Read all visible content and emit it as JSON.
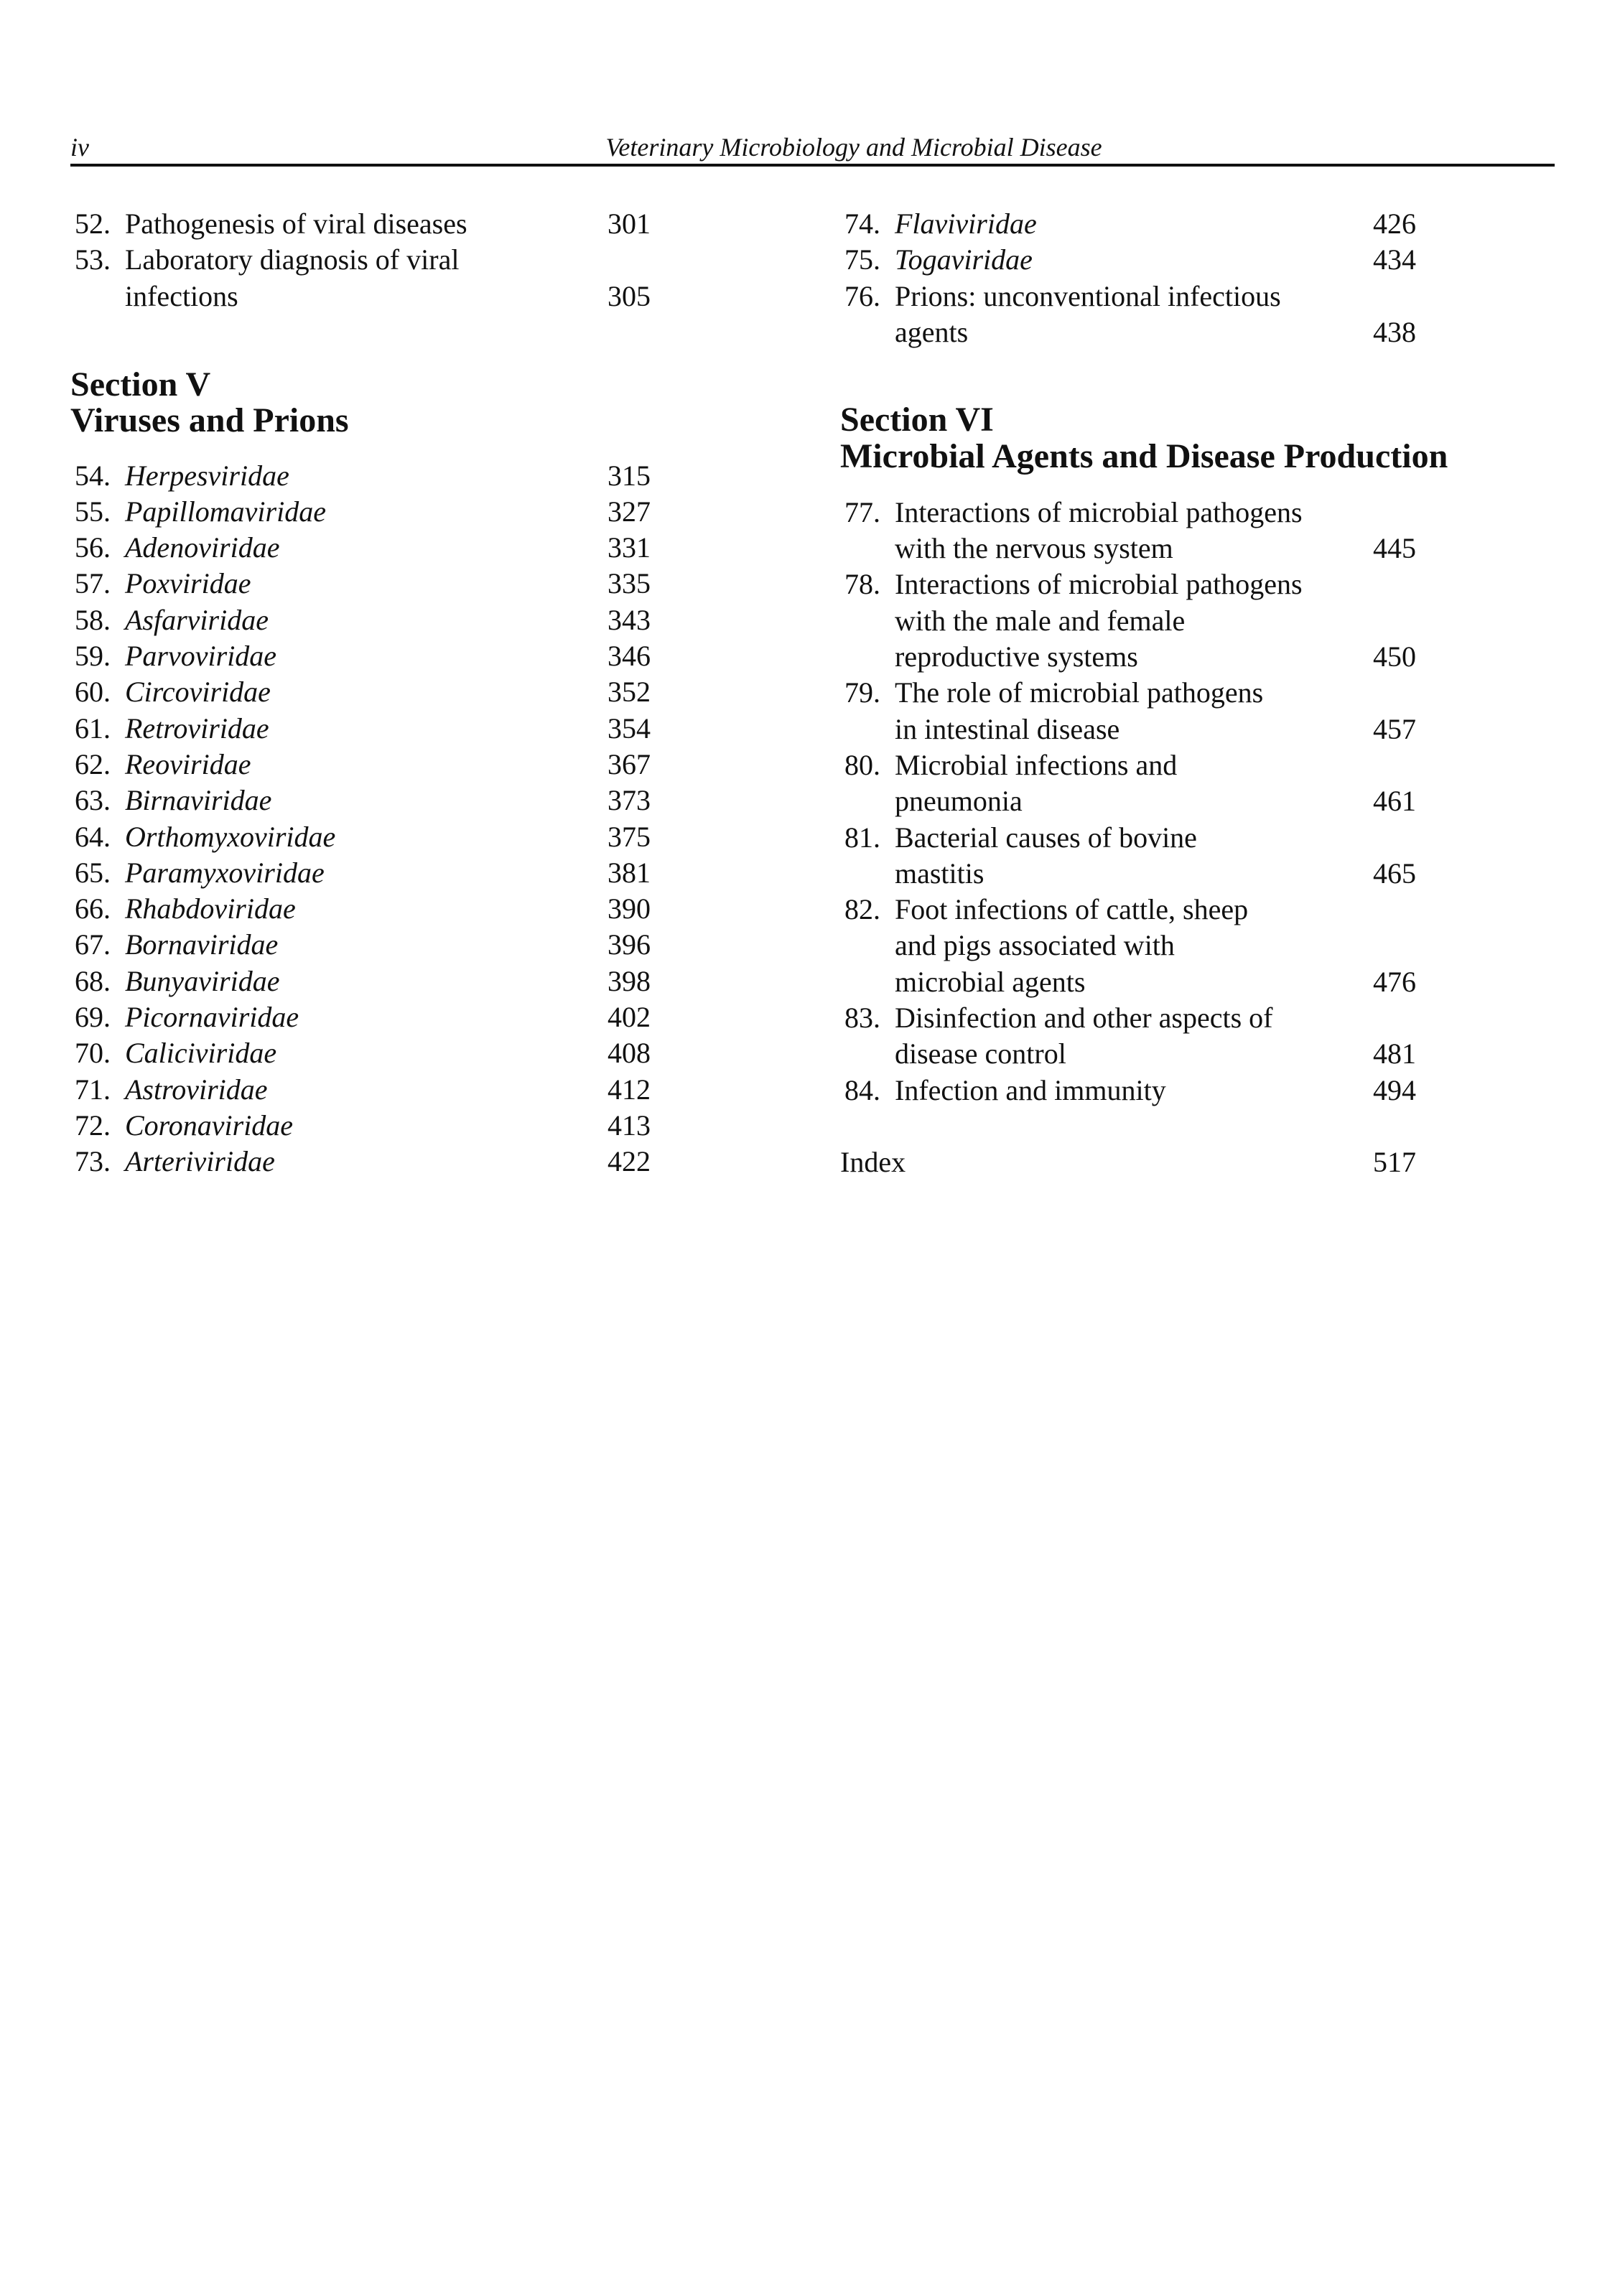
{
  "header": {
    "folio": "iv",
    "running_title": "Veterinary Microbiology and Microbial Disease"
  },
  "left_column": [
    {
      "type": "entry",
      "number": "52.",
      "lines": [
        "Pathogenesis of viral diseases"
      ],
      "page": "301",
      "italic": false
    },
    {
      "type": "entry",
      "number": "53.",
      "lines": [
        "Laboratory diagnosis of viral",
        "infections"
      ],
      "page": "305",
      "italic": false
    },
    {
      "type": "section",
      "lines": [
        "Section V",
        "Viruses and Prions"
      ]
    },
    {
      "type": "entry",
      "number": "54.",
      "lines": [
        "Herpesviridae"
      ],
      "page": "315",
      "italic": true
    },
    {
      "type": "entry",
      "number": "55.",
      "lines": [
        "Papillomaviridae"
      ],
      "page": "327",
      "italic": true
    },
    {
      "type": "entry",
      "number": "56.",
      "lines": [
        "Adenoviridae"
      ],
      "page": "331",
      "italic": true
    },
    {
      "type": "entry",
      "number": "57.",
      "lines": [
        "Poxviridae"
      ],
      "page": "335",
      "italic": true
    },
    {
      "type": "entry",
      "number": "58.",
      "lines": [
        "Asfarviridae"
      ],
      "page": "343",
      "italic": true
    },
    {
      "type": "entry",
      "number": "59.",
      "lines": [
        "Parvoviridae"
      ],
      "page": "346",
      "italic": true
    },
    {
      "type": "entry",
      "number": "60.",
      "lines": [
        "Circoviridae"
      ],
      "page": "352",
      "italic": true
    },
    {
      "type": "entry",
      "number": "61.",
      "lines": [
        "Retroviridae"
      ],
      "page": "354",
      "italic": true
    },
    {
      "type": "entry",
      "number": "62.",
      "lines": [
        "Reoviridae"
      ],
      "page": "367",
      "italic": true
    },
    {
      "type": "entry",
      "number": "63.",
      "lines": [
        "Birnaviridae"
      ],
      "page": "373",
      "italic": true
    },
    {
      "type": "entry",
      "number": "64.",
      "lines": [
        "Orthomyxoviridae"
      ],
      "page": "375",
      "italic": true
    },
    {
      "type": "entry",
      "number": "65.",
      "lines": [
        "Paramyxoviridae"
      ],
      "page": "381",
      "italic": true
    },
    {
      "type": "entry",
      "number": "66.",
      "lines": [
        "Rhabdoviridae"
      ],
      "page": "390",
      "italic": true
    },
    {
      "type": "entry",
      "number": "67.",
      "lines": [
        "Bornaviridae"
      ],
      "page": "396",
      "italic": true
    },
    {
      "type": "entry",
      "number": "68.",
      "lines": [
        "Bunyaviridae"
      ],
      "page": "398",
      "italic": true
    },
    {
      "type": "entry",
      "number": "69.",
      "lines": [
        "Picornaviridae"
      ],
      "page": "402",
      "italic": true
    },
    {
      "type": "entry",
      "number": "70.",
      "lines": [
        "Caliciviridae"
      ],
      "page": "408",
      "italic": true
    },
    {
      "type": "entry",
      "number": "71.",
      "lines": [
        "Astroviridae"
      ],
      "page": "412",
      "italic": true
    },
    {
      "type": "entry",
      "number": "72.",
      "lines": [
        "Coronaviridae"
      ],
      "page": "413",
      "italic": true
    },
    {
      "type": "entry",
      "number": "73.",
      "lines": [
        "Arteriviridae"
      ],
      "page": "422",
      "italic": true
    }
  ],
  "right_column": [
    {
      "type": "entry",
      "number": "74.",
      "lines": [
        "Flaviviridae"
      ],
      "page": "426",
      "italic": true
    },
    {
      "type": "entry",
      "number": "75.",
      "lines": [
        "Togaviridae"
      ],
      "page": "434",
      "italic": true
    },
    {
      "type": "entry",
      "number": "76.",
      "lines": [
        "Prions: unconventional infectious",
        "agents"
      ],
      "page": "438",
      "italic": false
    },
    {
      "type": "section",
      "lines": [
        "Section VI",
        "Microbial Agents and Disease Production"
      ]
    },
    {
      "type": "entry",
      "number": "77.",
      "lines": [
        "Interactions of microbial pathogens",
        "with the nervous system"
      ],
      "page": "445",
      "italic": false
    },
    {
      "type": "entry",
      "number": "78.",
      "lines": [
        "Interactions of microbial pathogens",
        "with the male and female",
        "reproductive systems"
      ],
      "page": "450",
      "italic": false
    },
    {
      "type": "entry",
      "number": "79.",
      "lines": [
        "The role of microbial pathogens",
        "in intestinal disease"
      ],
      "page": "457",
      "italic": false
    },
    {
      "type": "entry",
      "number": "80.",
      "lines": [
        "Microbial infections and",
        "pneumonia"
      ],
      "page": "461",
      "italic": false
    },
    {
      "type": "entry",
      "number": "81.",
      "lines": [
        "Bacterial causes of bovine",
        "mastitis"
      ],
      "page": "465",
      "italic": false
    },
    {
      "type": "entry",
      "number": "82.",
      "lines": [
        "Foot infections of cattle, sheep",
        "and pigs associated with",
        "microbial agents"
      ],
      "page": "476",
      "italic": false
    },
    {
      "type": "entry",
      "number": "83.",
      "lines": [
        "Disinfection and other aspects of",
        "disease control"
      ],
      "page": "481",
      "italic": false
    },
    {
      "type": "entry",
      "number": "84.",
      "lines": [
        "Infection and immunity"
      ],
      "page": "494",
      "italic": false
    },
    {
      "type": "index",
      "lines": [
        "Index"
      ],
      "page": "517"
    }
  ]
}
